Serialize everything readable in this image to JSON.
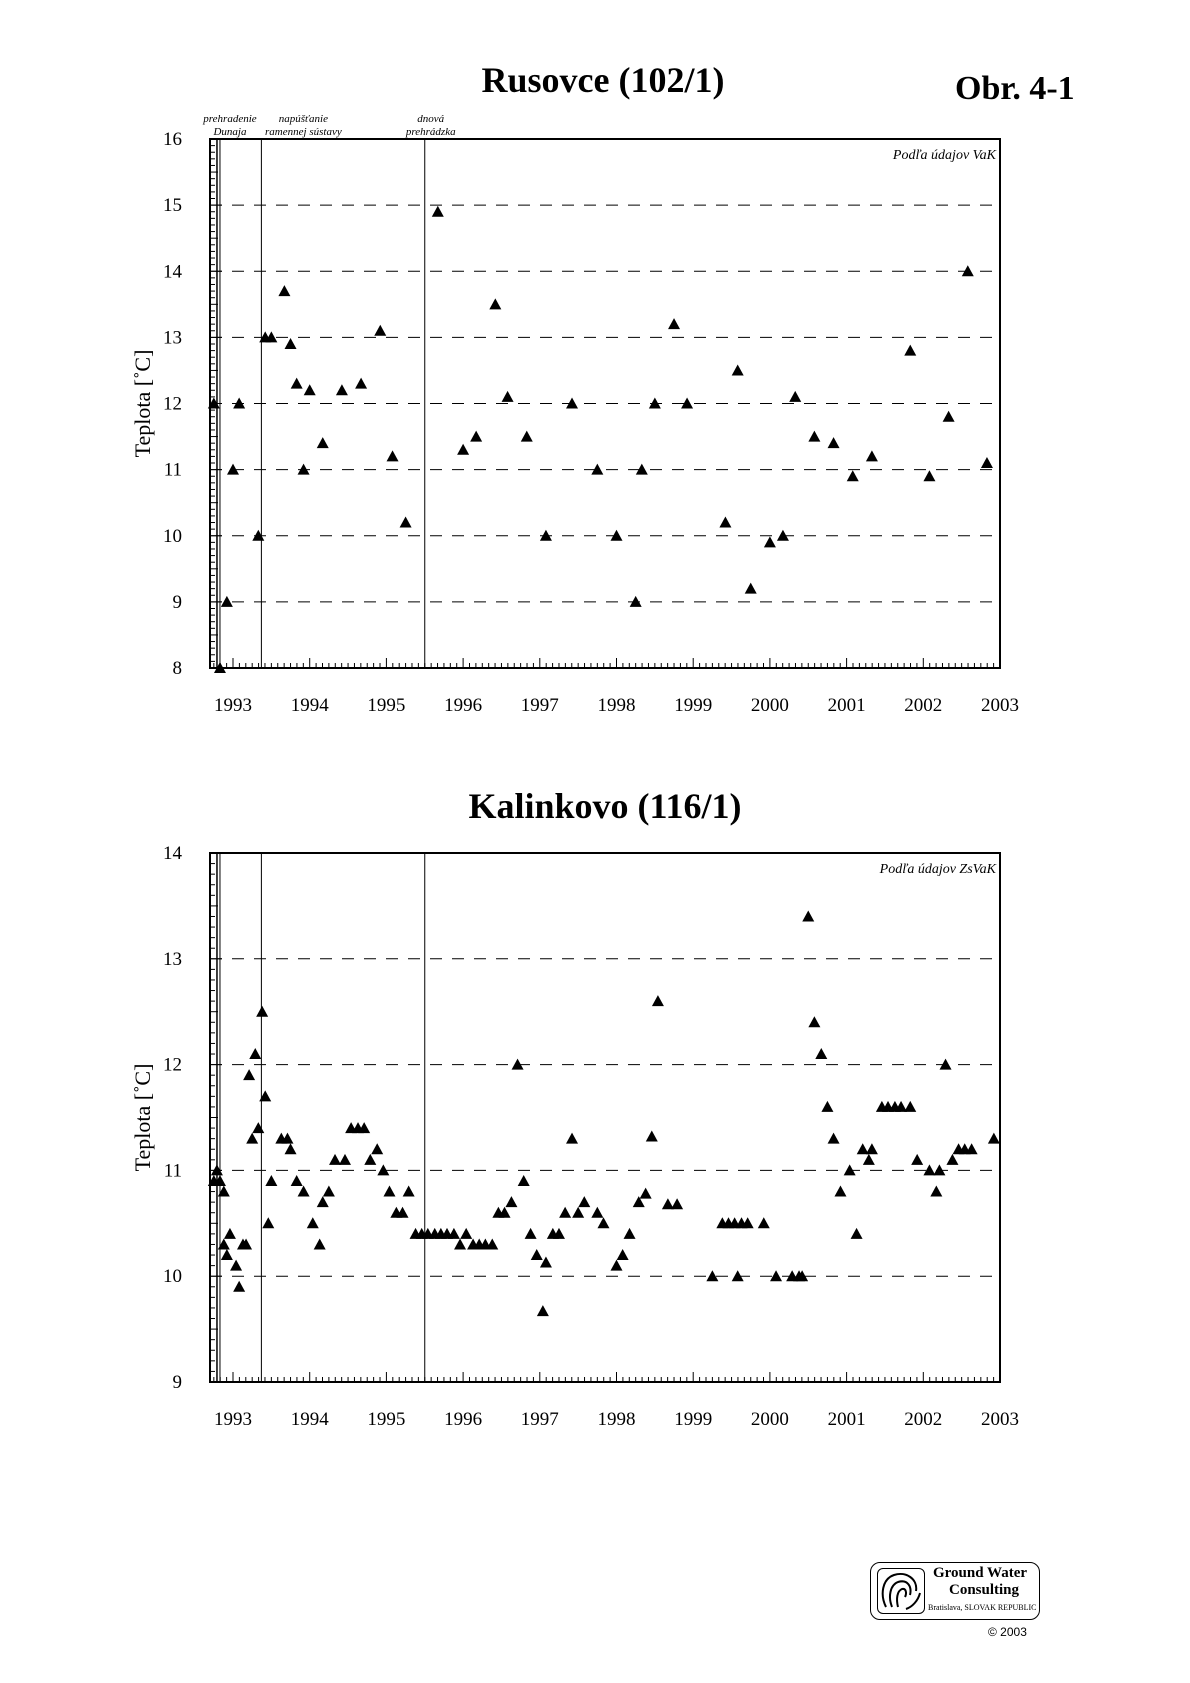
{
  "figure_label": "Obr. 4-1",
  "chart_data": [
    {
      "type": "scatter",
      "title": "Rusovce (102/1)",
      "ylabel": "Teplota [˚C]",
      "xlabel": "",
      "xlim": [
        1992.7,
        2003
      ],
      "ylim": [
        8,
        16
      ],
      "yticks": [
        8,
        9,
        10,
        11,
        12,
        13,
        14,
        15,
        16
      ],
      "xticks": [
        1993,
        1994,
        1995,
        1996,
        1997,
        1998,
        1999,
        2000,
        2001,
        2002,
        2003
      ],
      "xtick_labels": [
        "1993",
        "1994",
        "1995",
        "1996",
        "1997",
        "1998",
        "1999",
        "2000",
        "2001",
        "2002",
        "2003"
      ],
      "grid": "horizontal dashed",
      "marker": "triangle",
      "source_note": "Podľa údajov VaK",
      "events": [
        {
          "x": 1992.83,
          "label": "prehradenie Dunaja",
          "lines": [
            "prehradenie",
            "Dunaja"
          ]
        },
        {
          "x": 1993.37,
          "label": "napúšťanie ramennej sústavy",
          "lines": [
            "napúšťanie",
            "ramennej sústavy"
          ]
        },
        {
          "x": 1995.5,
          "label": "dnová prehrádzka",
          "lines": [
            "dnová",
            "prehrádzka"
          ]
        }
      ],
      "points": [
        [
          1992.75,
          12.0
        ],
        [
          1992.83,
          8.0
        ],
        [
          1992.92,
          9.0
        ],
        [
          1993.0,
          11.0
        ],
        [
          1993.08,
          12.0
        ],
        [
          1993.33,
          10.0
        ],
        [
          1993.42,
          13.0
        ],
        [
          1993.5,
          13.0
        ],
        [
          1993.67,
          13.7
        ],
        [
          1993.75,
          12.9
        ],
        [
          1993.83,
          12.3
        ],
        [
          1993.92,
          11.0
        ],
        [
          1994.0,
          12.2
        ],
        [
          1994.17,
          11.4
        ],
        [
          1994.42,
          12.2
        ],
        [
          1994.67,
          12.3
        ],
        [
          1994.92,
          13.1
        ],
        [
          1995.08,
          11.2
        ],
        [
          1995.25,
          10.2
        ],
        [
          1995.67,
          14.9
        ],
        [
          1996.0,
          11.3
        ],
        [
          1996.17,
          11.5
        ],
        [
          1996.42,
          13.5
        ],
        [
          1996.58,
          12.1
        ],
        [
          1996.83,
          11.5
        ],
        [
          1997.08,
          10.0
        ],
        [
          1997.42,
          12.0
        ],
        [
          1997.75,
          11.0
        ],
        [
          1998.0,
          10.0
        ],
        [
          1998.25,
          9.0
        ],
        [
          1998.33,
          11.0
        ],
        [
          1998.5,
          12.0
        ],
        [
          1998.75,
          13.2
        ],
        [
          1998.92,
          12.0
        ],
        [
          1999.42,
          10.2
        ],
        [
          1999.58,
          12.5
        ],
        [
          1999.75,
          9.2
        ],
        [
          2000.0,
          9.9
        ],
        [
          2000.17,
          10.0
        ],
        [
          2000.33,
          12.1
        ],
        [
          2000.58,
          11.5
        ],
        [
          2000.83,
          11.4
        ],
        [
          2001.08,
          10.9
        ],
        [
          2001.33,
          11.2
        ],
        [
          2001.83,
          12.8
        ],
        [
          2002.08,
          10.9
        ],
        [
          2002.33,
          11.8
        ],
        [
          2002.58,
          14.0
        ],
        [
          2002.83,
          11.1
        ]
      ]
    },
    {
      "type": "scatter",
      "title": "Kalinkovo (116/1)",
      "ylabel": "Teplota [˚C]",
      "xlabel": "",
      "xlim": [
        1992.7,
        2003
      ],
      "ylim": [
        9,
        14
      ],
      "yticks": [
        9,
        10,
        11,
        12,
        13,
        14
      ],
      "xticks": [
        1993,
        1994,
        1995,
        1996,
        1997,
        1998,
        1999,
        2000,
        2001,
        2002,
        2003
      ],
      "xtick_labels": [
        "1993",
        "1994",
        "1995",
        "1996",
        "1997",
        "1998",
        "1999",
        "2000",
        "2001",
        "2002",
        "2003"
      ],
      "grid": "horizontal dashed",
      "marker": "triangle",
      "source_note": "Podľa údajov ZsVaK",
      "events": [
        {
          "x": 1992.83,
          "label": "",
          "lines": []
        },
        {
          "x": 1993.37,
          "label": "",
          "lines": []
        },
        {
          "x": 1995.5,
          "label": "",
          "lines": []
        }
      ],
      "points": [
        [
          1992.75,
          10.9
        ],
        [
          1992.79,
          11.0
        ],
        [
          1992.83,
          10.9
        ],
        [
          1992.88,
          10.8
        ],
        [
          1992.88,
          10.3
        ],
        [
          1992.92,
          10.2
        ],
        [
          1992.96,
          10.4
        ],
        [
          1993.04,
          10.1
        ],
        [
          1993.08,
          9.9
        ],
        [
          1993.13,
          10.3
        ],
        [
          1993.17,
          10.3
        ],
        [
          1993.21,
          11.9
        ],
        [
          1993.25,
          11.3
        ],
        [
          1993.29,
          12.1
        ],
        [
          1993.33,
          11.4
        ],
        [
          1993.38,
          12.5
        ],
        [
          1993.42,
          11.7
        ],
        [
          1993.46,
          10.5
        ],
        [
          1993.5,
          10.9
        ],
        [
          1993.63,
          11.3
        ],
        [
          1993.71,
          11.3
        ],
        [
          1993.75,
          11.2
        ],
        [
          1993.83,
          10.9
        ],
        [
          1993.92,
          10.8
        ],
        [
          1994.04,
          10.5
        ],
        [
          1994.13,
          10.3
        ],
        [
          1994.17,
          10.7
        ],
        [
          1994.25,
          10.8
        ],
        [
          1994.33,
          11.1
        ],
        [
          1994.46,
          11.1
        ],
        [
          1994.54,
          11.4
        ],
        [
          1994.63,
          11.4
        ],
        [
          1994.71,
          11.4
        ],
        [
          1994.79,
          11.1
        ],
        [
          1994.88,
          11.2
        ],
        [
          1994.96,
          11.0
        ],
        [
          1995.04,
          10.8
        ],
        [
          1995.13,
          10.6
        ],
        [
          1995.21,
          10.6
        ],
        [
          1995.29,
          10.8
        ],
        [
          1995.38,
          10.4
        ],
        [
          1995.46,
          10.4
        ],
        [
          1995.54,
          10.4
        ],
        [
          1995.63,
          10.4
        ],
        [
          1995.71,
          10.4
        ],
        [
          1995.79,
          10.4
        ],
        [
          1995.88,
          10.4
        ],
        [
          1995.96,
          10.3
        ],
        [
          1996.04,
          10.4
        ],
        [
          1996.13,
          10.3
        ],
        [
          1996.21,
          10.3
        ],
        [
          1996.29,
          10.3
        ],
        [
          1996.38,
          10.3
        ],
        [
          1996.46,
          10.6
        ],
        [
          1996.54,
          10.6
        ],
        [
          1996.63,
          10.7
        ],
        [
          1996.71,
          12.0
        ],
        [
          1996.79,
          10.9
        ],
        [
          1996.88,
          10.4
        ],
        [
          1996.96,
          10.2
        ],
        [
          1997.04,
          9.67
        ],
        [
          1997.08,
          10.13
        ],
        [
          1997.17,
          10.4
        ],
        [
          1997.25,
          10.4
        ],
        [
          1997.33,
          10.6
        ],
        [
          1997.42,
          11.3
        ],
        [
          1997.5,
          10.6
        ],
        [
          1997.58,
          10.7
        ],
        [
          1997.75,
          10.6
        ],
        [
          1997.83,
          10.5
        ],
        [
          1998.0,
          10.1
        ],
        [
          1998.08,
          10.2
        ],
        [
          1998.17,
          10.4
        ],
        [
          1998.29,
          10.7
        ],
        [
          1998.38,
          10.78
        ],
        [
          1998.46,
          11.32
        ],
        [
          1998.54,
          12.6
        ],
        [
          1998.67,
          10.68
        ],
        [
          1998.79,
          10.68
        ],
        [
          1999.25,
          10.0
        ],
        [
          1999.38,
          10.5
        ],
        [
          1999.46,
          10.5
        ],
        [
          1999.54,
          10.5
        ],
        [
          1999.58,
          10.0
        ],
        [
          1999.63,
          10.5
        ],
        [
          1999.71,
          10.5
        ],
        [
          1999.92,
          10.5
        ],
        [
          2000.08,
          10.0
        ],
        [
          2000.29,
          10.0
        ],
        [
          2000.38,
          10.0
        ],
        [
          2000.42,
          10.0
        ],
        [
          2000.5,
          13.4
        ],
        [
          2000.58,
          12.4
        ],
        [
          2000.67,
          12.1
        ],
        [
          2000.75,
          11.6
        ],
        [
          2000.83,
          11.3
        ],
        [
          2000.92,
          10.8
        ],
        [
          2001.04,
          11.0
        ],
        [
          2001.13,
          10.4
        ],
        [
          2001.21,
          11.2
        ],
        [
          2001.29,
          11.1
        ],
        [
          2001.33,
          11.2
        ],
        [
          2001.46,
          11.6
        ],
        [
          2001.54,
          11.6
        ],
        [
          2001.63,
          11.6
        ],
        [
          2001.71,
          11.6
        ],
        [
          2001.83,
          11.6
        ],
        [
          2001.92,
          11.1
        ],
        [
          2002.08,
          11.0
        ],
        [
          2002.17,
          10.8
        ],
        [
          2002.21,
          11.0
        ],
        [
          2002.29,
          12.0
        ],
        [
          2002.38,
          11.1
        ],
        [
          2002.46,
          11.2
        ],
        [
          2002.54,
          11.2
        ],
        [
          2002.63,
          11.2
        ],
        [
          2002.92,
          11.3
        ]
      ]
    }
  ],
  "logo": {
    "line1": "Ground Water",
    "line2": "Consulting",
    "line3": "Bratislava, SLOVAK REPUBLIC"
  },
  "copyright": "© 2003"
}
